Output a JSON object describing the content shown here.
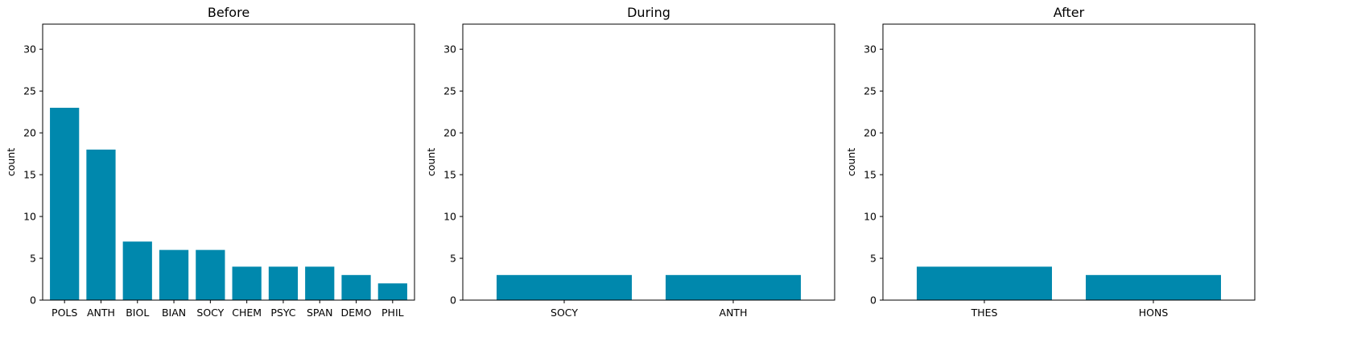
{
  "style": {
    "bar_color": "#0088ad",
    "axis_color": "#000000"
  },
  "chart_data": [
    {
      "type": "bar",
      "title": "Before",
      "xlabel": "",
      "ylabel": "count",
      "ylim": [
        0,
        33
      ],
      "yticks": [
        0,
        5,
        10,
        15,
        20,
        25,
        30
      ],
      "categories": [
        "POLS",
        "ANTH",
        "BIOL",
        "BIAN",
        "SOCY",
        "CHEM",
        "PSYC",
        "SPAN",
        "DEMO",
        "PHIL"
      ],
      "values": [
        23,
        18,
        7,
        6,
        6,
        4,
        4,
        4,
        3,
        2
      ]
    },
    {
      "type": "bar",
      "title": "During",
      "xlabel": "",
      "ylabel": "count",
      "ylim": [
        0,
        33
      ],
      "yticks": [
        0,
        5,
        10,
        15,
        20,
        25,
        30
      ],
      "categories": [
        "SOCY",
        "ANTH"
      ],
      "values": [
        3,
        3
      ]
    },
    {
      "type": "bar",
      "title": "After",
      "xlabel": "",
      "ylabel": "count",
      "ylim": [
        0,
        33
      ],
      "yticks": [
        0,
        5,
        10,
        15,
        20,
        25,
        30
      ],
      "categories": [
        "THES",
        "HONS"
      ],
      "values": [
        4,
        3
      ]
    }
  ]
}
